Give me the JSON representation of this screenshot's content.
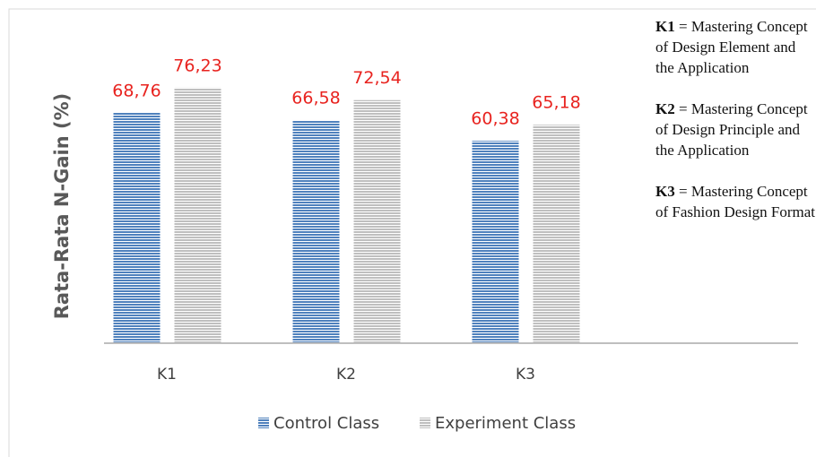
{
  "chart_data": {
    "type": "bar",
    "y_label": "Rata-Rata  N-Gain  (%)",
    "categories": [
      "K1",
      "K2",
      "K3"
    ],
    "series": [
      {
        "name": "Control Class",
        "color": "#4f81bd",
        "values": [
          68.76,
          66.58,
          60.38
        ],
        "value_labels": [
          "68,76",
          "66,58",
          "60,38"
        ]
      },
      {
        "name": "Experiment Class",
        "color": "#bfbfbf",
        "values": [
          76.23,
          72.54,
          65.18
        ],
        "value_labels": [
          "76,23",
          "72,54",
          "65,18"
        ]
      }
    ],
    "value_label_color": "#e8231f",
    "ylim": [
      0,
      100
    ],
    "grid": false,
    "legend": "bottom",
    "annotations": [
      {
        "term": "K1",
        "text": "= Mastering Concept of Design Element and the Application"
      },
      {
        "term": "K2",
        "text": "= Mastering Concept of Design Principle and the Application"
      },
      {
        "term": "K3",
        "text": "= Mastering Concept of Fashion Design Format"
      }
    ]
  }
}
